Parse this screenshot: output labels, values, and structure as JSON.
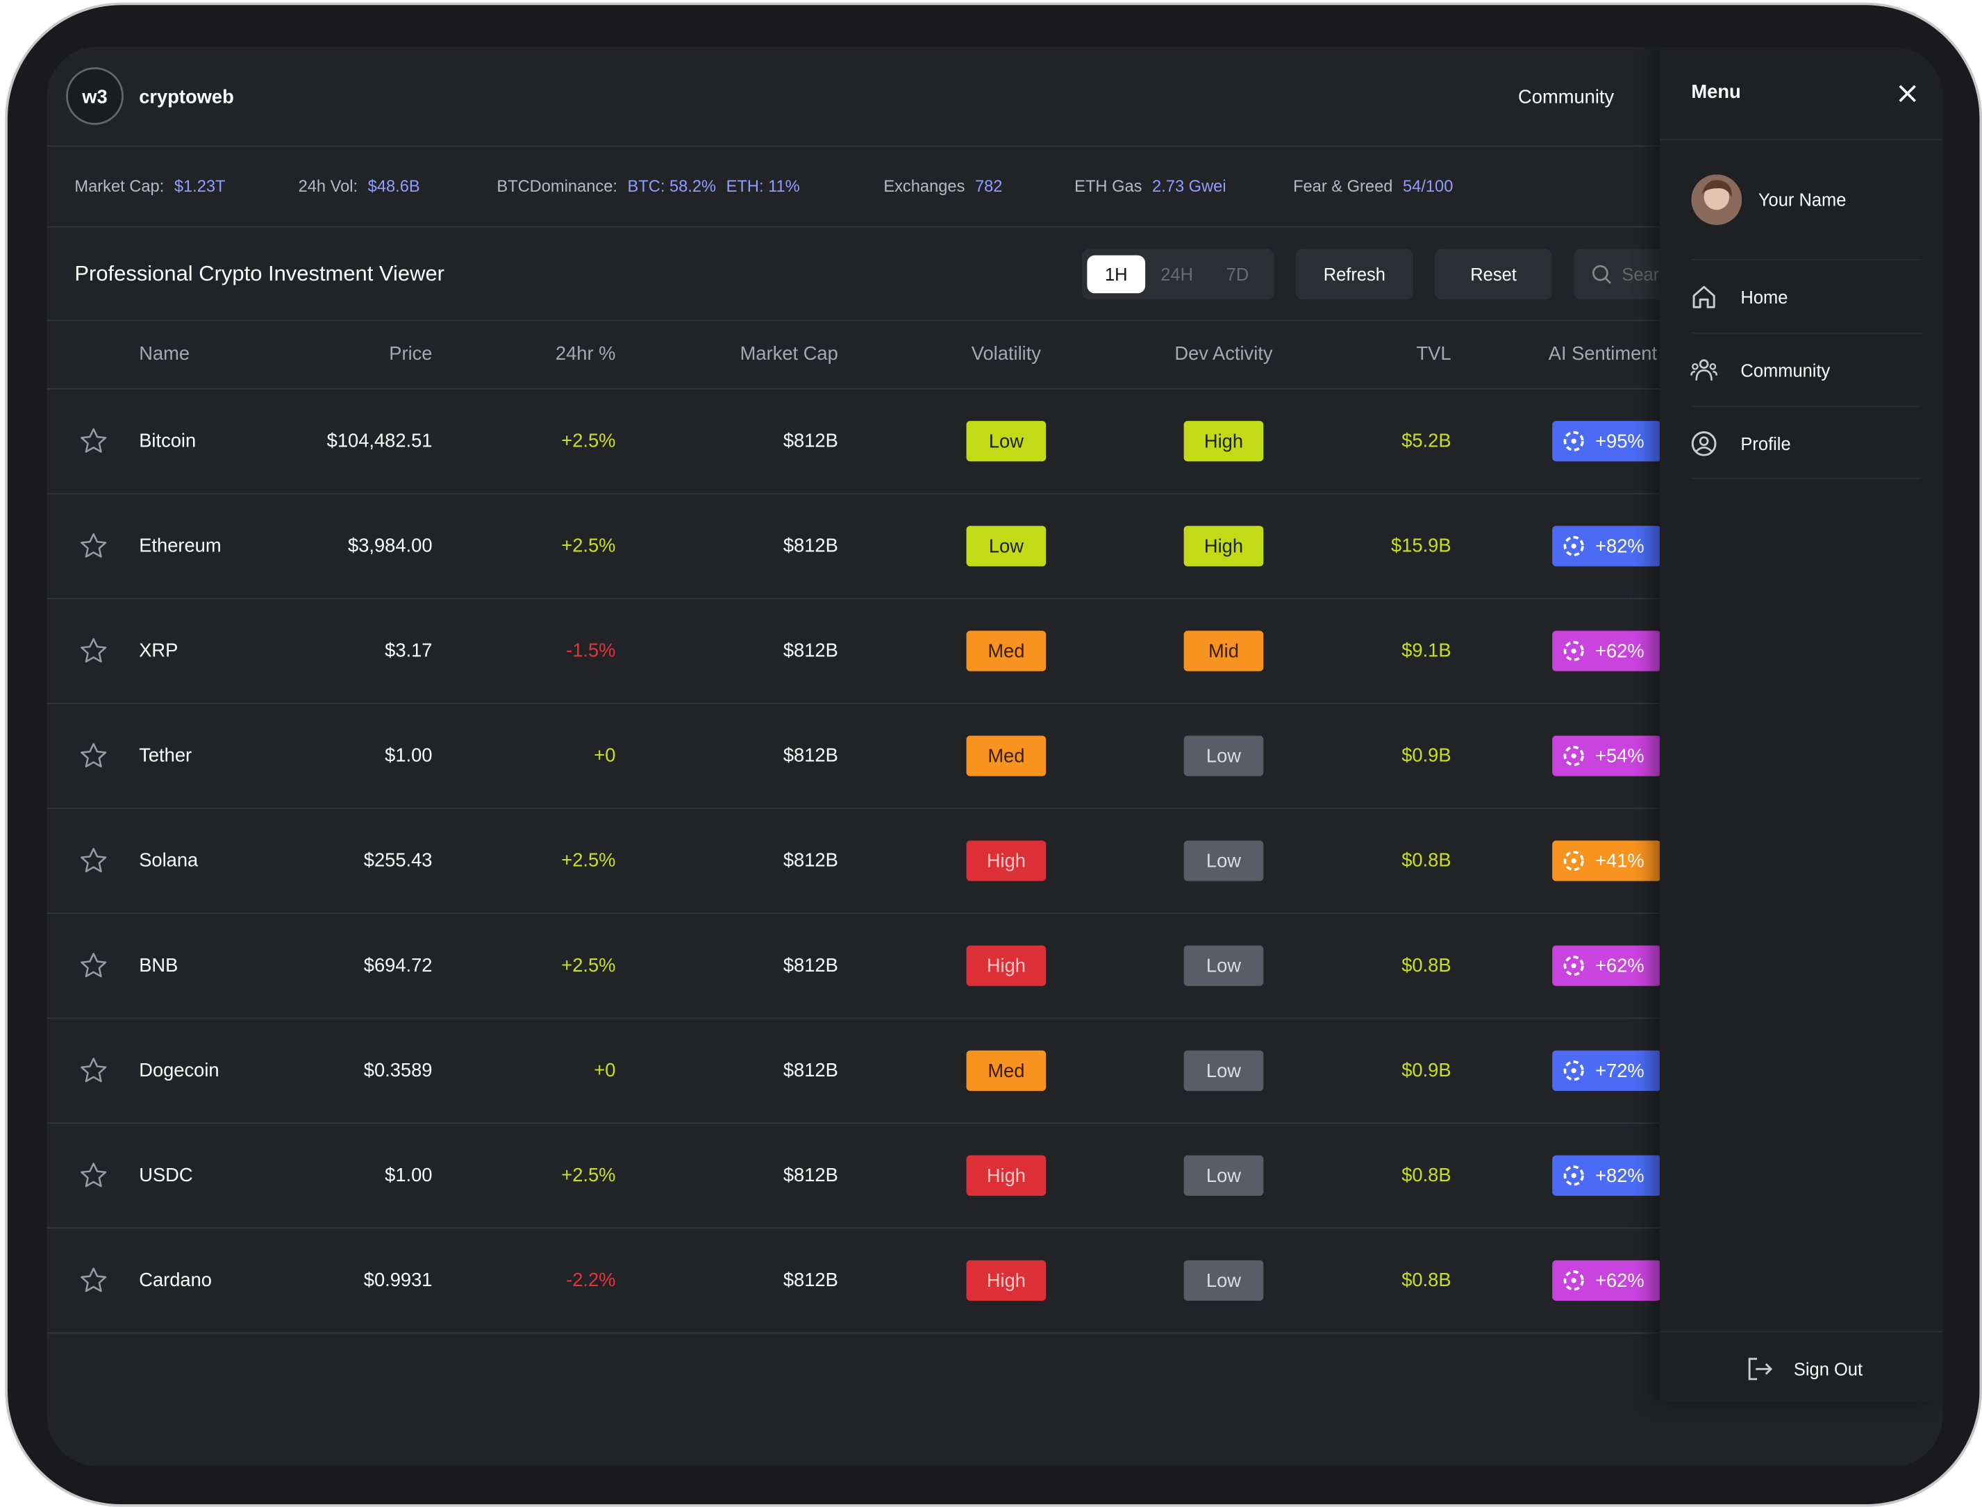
{
  "header": {
    "logo": "w3",
    "brand": "cryptoweb",
    "nav": "Community"
  },
  "stats": [
    {
      "label": "Market Cap:",
      "values": [
        "$1.23T"
      ]
    },
    {
      "label": "24h Vol:",
      "values": [
        "$48.6B"
      ]
    },
    {
      "label": "BTCDominance:",
      "values": [
        "BTC: 58.2%",
        "ETH: 11%"
      ]
    },
    {
      "label": "Exchanges",
      "values": [
        "782"
      ]
    },
    {
      "label": "ETH Gas",
      "values": [
        "2.73 Gwei"
      ]
    },
    {
      "label": "Fear & Greed",
      "values": [
        "54/100"
      ]
    }
  ],
  "toolbar": {
    "title": "Professional Crypto Investment Viewer",
    "tabs": [
      "1H",
      "24H",
      "7D"
    ],
    "buttons": [
      "Refresh",
      "Reset"
    ],
    "search": "Search"
  },
  "table": {
    "columns": [
      "Name",
      "Price",
      "24hr %",
      "Market Cap",
      "Volatility",
      "Dev Activity",
      "TVL",
      "AI Sentiment"
    ],
    "rows": [
      {
        "name": "Bitcoin",
        "price": "$104,482.51",
        "change": {
          "text": "+2.5%",
          "color": "#c6e01c"
        },
        "mcap": "$812B",
        "volatility": {
          "text": "Low",
          "bg": "#c3da16",
          "fg": "#1d2008"
        },
        "dev": {
          "text": "High",
          "bg": "#c3da16",
          "fg": "#1d2008"
        },
        "tvl": "$5.2B",
        "ai": {
          "text": "+95%",
          "bg": "#4b6bf5"
        }
      },
      {
        "name": "Ethereum",
        "price": "$3,984.00",
        "change": {
          "text": "+2.5%",
          "color": "#c6e01c"
        },
        "mcap": "$812B",
        "volatility": {
          "text": "Low",
          "bg": "#c3da16",
          "fg": "#1d2008"
        },
        "dev": {
          "text": "High",
          "bg": "#c3da16",
          "fg": "#1d2008"
        },
        "tvl": "$15.9B",
        "ai": {
          "text": "+82%",
          "bg": "#4b6bf5"
        }
      },
      {
        "name": "XRP",
        "price": "$3.17",
        "change": {
          "text": "-1.5%",
          "color": "#e3343c"
        },
        "mcap": "$812B",
        "volatility": {
          "text": "Med",
          "bg": "#f7931e",
          "fg": "#3a1d02"
        },
        "dev": {
          "text": "Mid",
          "bg": "#f7931e",
          "fg": "#3a1d02"
        },
        "tvl": "$9.1B",
        "ai": {
          "text": "+62%",
          "bg": "#c943de"
        }
      },
      {
        "name": "Tether",
        "price": "$1.00",
        "change": {
          "text": "+0",
          "color": "#c6e01c"
        },
        "mcap": "$812B",
        "volatility": {
          "text": "Med",
          "bg": "#f7931e",
          "fg": "#3a1d02"
        },
        "dev": {
          "text": "Low",
          "bg": "#5b5d66",
          "fg": "#dcdde2"
        },
        "tvl": "$0.9B",
        "ai": {
          "text": "+54%",
          "bg": "#c943de"
        }
      },
      {
        "name": "Solana",
        "price": "$255.43",
        "change": {
          "text": "+2.5%",
          "color": "#c6e01c"
        },
        "mcap": "$812B",
        "volatility": {
          "text": "High",
          "bg": "#dd3036",
          "fg": "#ffc9cb"
        },
        "dev": {
          "text": "Low",
          "bg": "#5b5d66",
          "fg": "#dcdde2"
        },
        "tvl": "$0.8B",
        "ai": {
          "text": "+41%",
          "bg": "#f7931e"
        }
      },
      {
        "name": "BNB",
        "price": "$694.72",
        "change": {
          "text": "+2.5%",
          "color": "#c6e01c"
        },
        "mcap": "$812B",
        "volatility": {
          "text": "High",
          "bg": "#dd3036",
          "fg": "#ffc9cb"
        },
        "dev": {
          "text": "Low",
          "bg": "#5b5d66",
          "fg": "#dcdde2"
        },
        "tvl": "$0.8B",
        "ai": {
          "text": "+62%",
          "bg": "#c943de"
        }
      },
      {
        "name": "Dogecoin",
        "price": "$0.3589",
        "change": {
          "text": "+0",
          "color": "#c6e01c"
        },
        "mcap": "$812B",
        "volatility": {
          "text": "Med",
          "bg": "#f7931e",
          "fg": "#3a1d02"
        },
        "dev": {
          "text": "Low",
          "bg": "#5b5d66",
          "fg": "#dcdde2"
        },
        "tvl": "$0.9B",
        "ai": {
          "text": "+72%",
          "bg": "#4b6bf5"
        }
      },
      {
        "name": "USDC",
        "price": "$1.00",
        "change": {
          "text": "+2.5%",
          "color": "#c6e01c"
        },
        "mcap": "$812B",
        "volatility": {
          "text": "High",
          "bg": "#dd3036",
          "fg": "#ffc9cb"
        },
        "dev": {
          "text": "Low",
          "bg": "#5b5d66",
          "fg": "#dcdde2"
        },
        "tvl": "$0.8B",
        "ai": {
          "text": "+82%",
          "bg": "#4b6bf5"
        }
      },
      {
        "name": "Cardano",
        "price": "$0.9931",
        "change": {
          "text": "-2.2%",
          "color": "#e3343c"
        },
        "mcap": "$812B",
        "volatility": {
          "text": "High",
          "bg": "#dd3036",
          "fg": "#ffc9cb"
        },
        "dev": {
          "text": "Low",
          "bg": "#5b5d66",
          "fg": "#dcdde2"
        },
        "tvl": "$0.8B",
        "ai": {
          "text": "+62%",
          "bg": "#c943de"
        }
      }
    ]
  },
  "menu": {
    "title": "Menu",
    "user": "Your Name",
    "items": [
      "Home",
      "Community",
      "Profile"
    ],
    "signout": "Sign Out"
  }
}
